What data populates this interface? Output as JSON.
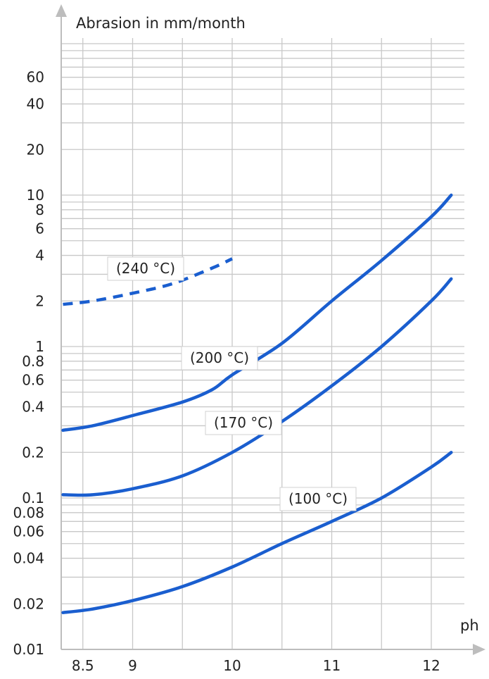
{
  "chart_data": {
    "type": "line",
    "title": "",
    "ylabel": "Abrasion in mm/month",
    "xlabel": "ph",
    "x_ticks": [
      8.5,
      9,
      10,
      11,
      12
    ],
    "y_scale": "log",
    "y_ticks": [
      0.01,
      0.02,
      0.04,
      0.06,
      0.08,
      0.1,
      0.2,
      0.4,
      0.6,
      0.8,
      1,
      2,
      4,
      6,
      8,
      10,
      20,
      40,
      60
    ],
    "x_range": [
      8.0,
      12.4
    ],
    "ylim": [
      0.01,
      100
    ],
    "grid": true,
    "colors": {
      "line": "#1a5ecf",
      "grid": "#c8c8c8",
      "axis": "#bdbdbd",
      "text": "#222222"
    },
    "series": [
      {
        "name": "(240 °C)",
        "style": "dashed",
        "points": [
          [
            8.3,
            1.9
          ],
          [
            8.6,
            2.0
          ],
          [
            9.0,
            2.25
          ],
          [
            9.4,
            2.6
          ],
          [
            9.8,
            3.3
          ],
          [
            10.0,
            3.8
          ]
        ]
      },
      {
        "name": "(200 °C)",
        "style": "solid",
        "points": [
          [
            8.3,
            0.28
          ],
          [
            8.6,
            0.3
          ],
          [
            9.0,
            0.35
          ],
          [
            9.5,
            0.43
          ],
          [
            9.8,
            0.52
          ],
          [
            10.0,
            0.65
          ],
          [
            10.5,
            1.05
          ],
          [
            11.0,
            2.0
          ],
          [
            11.5,
            3.7
          ],
          [
            12.0,
            7.2
          ],
          [
            12.2,
            10.0
          ]
        ]
      },
      {
        "name": "(170 °C)",
        "style": "solid",
        "points": [
          [
            8.3,
            0.105
          ],
          [
            8.6,
            0.105
          ],
          [
            9.0,
            0.115
          ],
          [
            9.5,
            0.14
          ],
          [
            10.0,
            0.2
          ],
          [
            10.5,
            0.32
          ],
          [
            11.0,
            0.55
          ],
          [
            11.5,
            1.0
          ],
          [
            12.0,
            2.0
          ],
          [
            12.2,
            2.8
          ]
        ]
      },
      {
        "name": "(100 °C)",
        "style": "solid",
        "points": [
          [
            8.3,
            0.0175
          ],
          [
            8.6,
            0.0185
          ],
          [
            9.0,
            0.021
          ],
          [
            9.5,
            0.026
          ],
          [
            10.0,
            0.035
          ],
          [
            10.5,
            0.05
          ],
          [
            11.0,
            0.07
          ],
          [
            11.5,
            0.1
          ],
          [
            12.0,
            0.16
          ],
          [
            12.2,
            0.2
          ]
        ]
      }
    ]
  }
}
